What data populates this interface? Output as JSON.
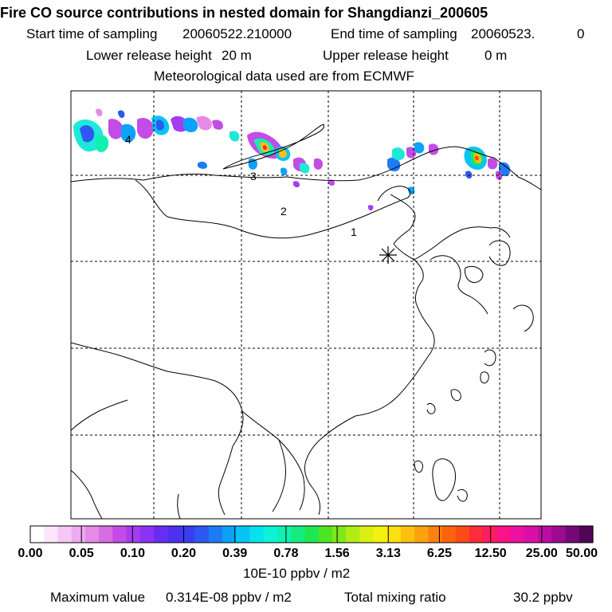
{
  "header": {
    "title": "Fire CO source contributions in nested domain for Shangdianzi_200605",
    "start_label": "Start time of sampling",
    "start_value": "20060522.210000",
    "end_label": "End time of sampling",
    "end_value": "20060523.",
    "end_extra": "0",
    "lower_label": "Lower release height",
    "lower_value": "20 m",
    "upper_label": "Upper release height",
    "upper_value": "0 m",
    "met_text": "Meteorological data used are from ECMWF"
  },
  "map": {
    "contour_labels": [
      "1",
      "2",
      "3",
      "4"
    ],
    "station_marker": "Shangdianzi"
  },
  "colorbar": {
    "tick_labels": [
      "0.00",
      "0.05",
      "0.10",
      "0.20",
      "0.39",
      "0.78",
      "1.56",
      "3.13",
      "6.25",
      "12.50",
      "25.00",
      "50.00"
    ],
    "colors": [
      "#ffffff",
      "#fbe6fb",
      "#f5c8f5",
      "#efaaf0",
      "#e68ae8",
      "#d86ce0",
      "#c44ce6",
      "#a53cf0",
      "#8a32f5",
      "#6a2cf2",
      "#4e30ee",
      "#3a3ef0",
      "#2e58f2",
      "#1c7cf5",
      "#0ca2f8",
      "#08c4f4",
      "#08e2ee",
      "#0ef2d8",
      "#10f0b0",
      "#14ec80",
      "#1ee850",
      "#4ae626",
      "#7ee81a",
      "#b2ec16",
      "#dcef14",
      "#f4f010",
      "#fce010",
      "#fcc00e",
      "#fca20e",
      "#fc820e",
      "#fc640c",
      "#fc4a18",
      "#fc2c3a",
      "#fc1c62",
      "#fa1286",
      "#ee10a0",
      "#d810a8",
      "#bc0ca4",
      "#9c0a92",
      "#760878",
      "#500654"
    ],
    "units": "10E-10 ppbv / m2"
  },
  "footer": {
    "max_label": "Maximum value",
    "max_value": "0.314E-08 ppbv / m2",
    "mix_label": "Total mixing ratio",
    "mix_value": "30.2 ppbv"
  }
}
